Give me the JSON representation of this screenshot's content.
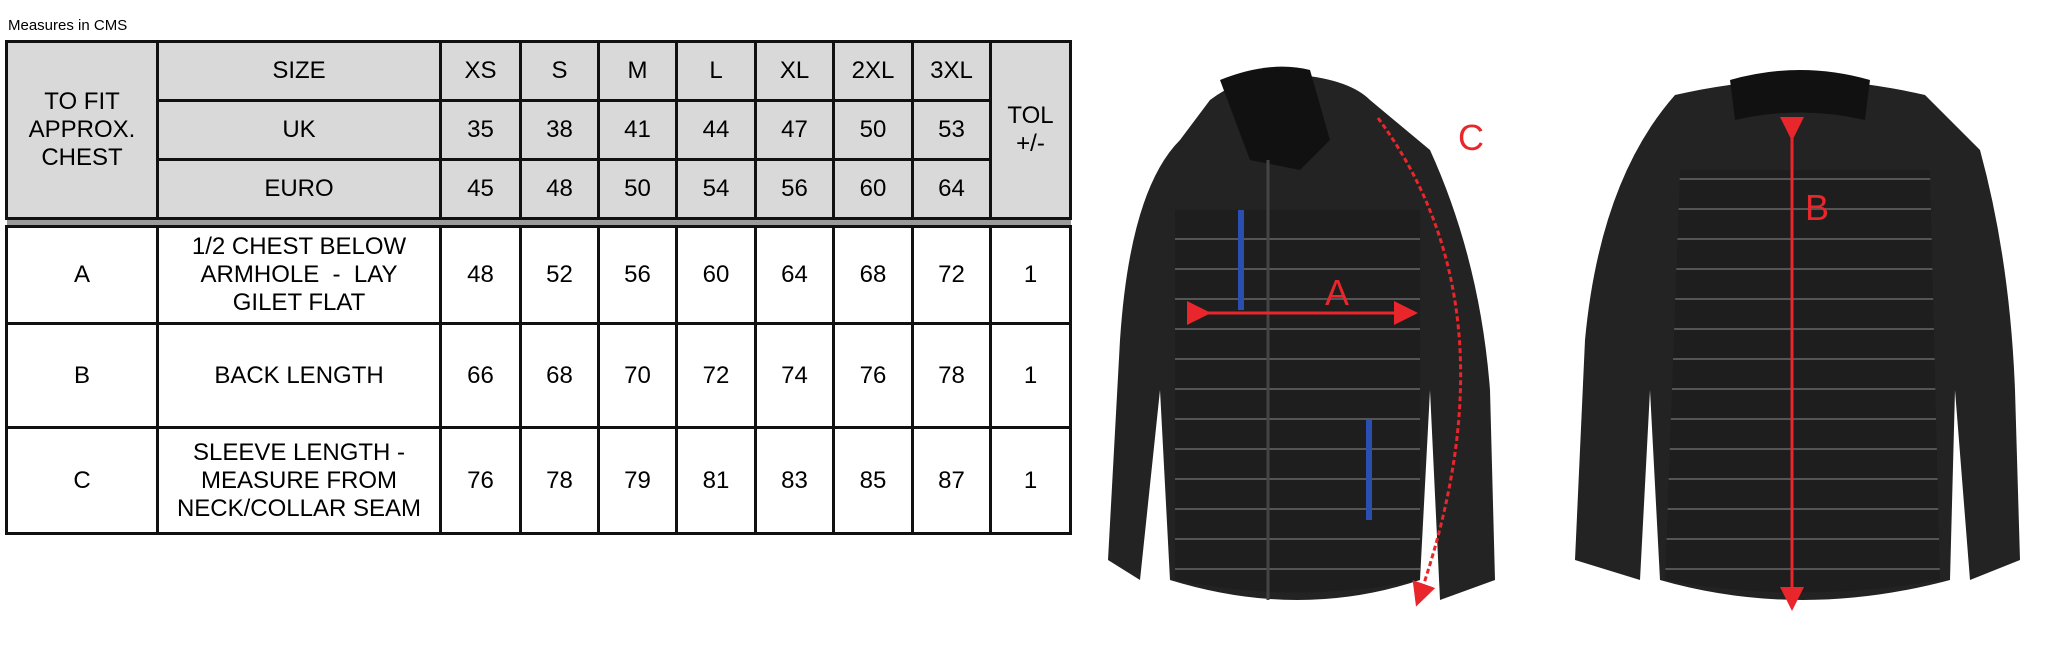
{
  "caption": "Measures in CMS",
  "header": {
    "fit_label": [
      "TO FIT",
      "APPROX.",
      "CHEST"
    ],
    "tol_label": [
      "TOL",
      "+/-"
    ],
    "rows": [
      {
        "label": "SIZE",
        "values": [
          "XS",
          "S",
          "M",
          "L",
          "XL",
          "2XL",
          "3XL"
        ]
      },
      {
        "label": "UK",
        "values": [
          "35",
          "38",
          "41",
          "44",
          "47",
          "50",
          "53"
        ]
      },
      {
        "label": "EURO",
        "values": [
          "45",
          "48",
          "50",
          "54",
          "56",
          "60",
          "64"
        ]
      }
    ]
  },
  "body": [
    {
      "code": "A",
      "desc": [
        "1/2 CHEST BELOW",
        "ARMHOLE  -  LAY",
        "GILET FLAT"
      ],
      "values": [
        "48",
        "52",
        "56",
        "60",
        "64",
        "68",
        "72"
      ],
      "tol": "1"
    },
    {
      "code": "B",
      "desc": [
        "BACK LENGTH"
      ],
      "values": [
        "66",
        "68",
        "70",
        "72",
        "74",
        "76",
        "78"
      ],
      "tol": "1"
    },
    {
      "code": "C",
      "desc": [
        "SLEEVE LENGTH -",
        "MEASURE FROM",
        "NECK/COLLAR SEAM"
      ],
      "values": [
        "76",
        "78",
        "79",
        "81",
        "83",
        "85",
        "87"
      ],
      "tol": "1"
    }
  ],
  "figure": {
    "labels": {
      "a": "A",
      "b": "B",
      "c": "C"
    },
    "arrow_color": "#e8262b",
    "zip_color": "#2a4fb0"
  }
}
